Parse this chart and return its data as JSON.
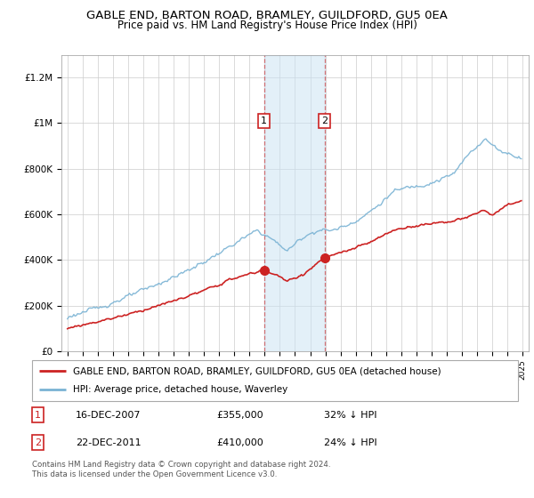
{
  "title": "GABLE END, BARTON ROAD, BRAMLEY, GUILDFORD, GU5 0EA",
  "subtitle": "Price paid vs. HM Land Registry's House Price Index (HPI)",
  "hpi_color": "#7ab3d4",
  "price_color": "#cc2222",
  "sale1_year": 2007.95,
  "sale1_price": 355000,
  "sale1_date": "16-DEC-2007",
  "sale1_pct": "32% ↓ HPI",
  "sale2_year": 2011.95,
  "sale2_price": 410000,
  "sale2_date": "22-DEC-2011",
  "sale2_pct": "24% ↓ HPI",
  "legend_property": "GABLE END, BARTON ROAD, BRAMLEY, GUILDFORD, GU5 0EA (detached house)",
  "legend_hpi": "HPI: Average price, detached house, Waverley",
  "footer1": "Contains HM Land Registry data © Crown copyright and database right 2024.",
  "footer2": "This data is licensed under the Open Government Licence v3.0.",
  "ylim_max": 1300000,
  "yticks": [
    0,
    200000,
    400000,
    600000,
    800000,
    1000000,
    1200000
  ],
  "ytick_labels": [
    "£0",
    "£200K",
    "£400K",
    "£600K",
    "£800K",
    "£1M",
    "£1.2M"
  ],
  "shade_color": "#cce4f4",
  "shade_alpha": 0.55
}
